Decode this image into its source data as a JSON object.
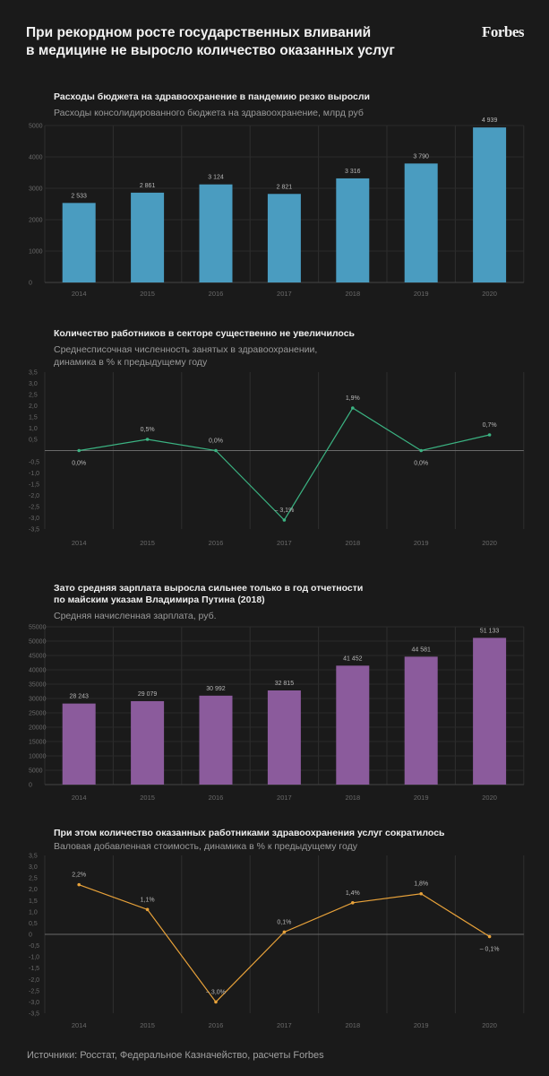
{
  "header": {
    "headline_line1": "При рекордном росте государственных вливаний",
    "headline_line2": "в медицине не выросло количество оказанных услуг",
    "brand": "Forbes"
  },
  "source": "Источники: Росстат, Федеральное Казначейство, расчеты Forbes",
  "charts": {
    "c1": {
      "title": "Расходы бюджета на здравоохранение в пандемию резко выросли",
      "subtitle": "Расходы консолидированного бюджета на здравоохранение, млрд руб"
    },
    "c2": {
      "title": "Количество работников в секторе существенно не увеличилось",
      "subtitle_line1": "Среднесписочная численность занятых в здравоохранении,",
      "subtitle_line2": "динамика в % к предыдущему году"
    },
    "c3": {
      "title_line1": "Зато средняя зарплата выросла сильнее только в год отчетности",
      "title_line2": "по майским указам Владимира Путина (2018)",
      "subtitle": "Средняя начисленная зарплата, руб."
    },
    "c4": {
      "title": "При этом количество оказанных работниками здравоохранения услуг сократилось",
      "subtitle": "Валовая добавленная стоимость, динамика в % к предыдущему году"
    }
  },
  "chart_data": [
    {
      "type": "bar",
      "title": "Расходы бюджета на здравоохранение в пандемию резко выросли",
      "subtitle": "Расходы консолидированного бюджета на здравоохранение, млрд руб",
      "categories": [
        "2014",
        "2015",
        "2016",
        "2017",
        "2018",
        "2019",
        "2020"
      ],
      "values": [
        2533,
        2861,
        3124,
        2821,
        3316,
        3790,
        4939
      ],
      "labels": [
        "2 533",
        "2 861",
        "3 124",
        "2 821",
        "3 316",
        "3 790",
        "4 939"
      ],
      "yticks": [
        0,
        1000,
        2000,
        3000,
        4000,
        5000
      ],
      "ylim": [
        0,
        5000
      ],
      "color": "#4a9cc0"
    },
    {
      "type": "line",
      "title": "Количество работников в секторе существенно не увеличилось",
      "subtitle": "Среднесписочная численность занятых в здравоохранении, динамика в % к предыдущему году",
      "categories": [
        "2014",
        "2015",
        "2016",
        "2017",
        "2018",
        "2019",
        "2020"
      ],
      "values": [
        0.0,
        0.5,
        0.0,
        -3.1,
        1.9,
        0.0,
        0.7
      ],
      "labels": [
        "0,0%",
        "0,5%",
        "0,0%",
        "– 3,1%",
        "1,9%",
        "0,0%",
        "0,7%"
      ],
      "label_pos": [
        "below",
        "above",
        "above",
        "above",
        "above",
        "below",
        "above"
      ],
      "yticks": [
        3.5,
        3.0,
        2.5,
        2.0,
        1.5,
        1.0,
        0.5,
        0,
        -0.5,
        -1.0,
        -1.5,
        -2.0,
        -2.5,
        -3.0,
        -3.5
      ],
      "ytick_labels": [
        "3,5",
        "3,0",
        "2,5",
        "2,0",
        "1,5",
        "1,0",
        "0,5",
        "",
        "-0,5",
        "-1,0",
        "-1,5",
        "-2,0",
        "-2,5",
        "-3,0",
        "-3,5"
      ],
      "ylim": [
        -3.5,
        3.5
      ],
      "color": "#3bb382"
    },
    {
      "type": "bar",
      "title": "Зато средняя зарплата выросла сильнее только в год отчетности по майским указам Владимира Путина (2018)",
      "subtitle": "Средняя начисленная зарплата, руб.",
      "categories": [
        "2014",
        "2015",
        "2016",
        "2017",
        "2018",
        "2019",
        "2020"
      ],
      "values": [
        28243,
        29079,
        30992,
        32815,
        41452,
        44581,
        51133
      ],
      "labels": [
        "28 243",
        "29 079",
        "30 992",
        "32 815",
        "41 452",
        "44 581",
        "51 133"
      ],
      "yticks": [
        0,
        5000,
        10000,
        15000,
        20000,
        25000,
        30000,
        35000,
        40000,
        45000,
        50000,
        55000
      ],
      "ylim": [
        0,
        55000
      ],
      "color": "#8b5b9c"
    },
    {
      "type": "line",
      "title": "При этом количество оказанных работниками здравоохранения услуг сократилось",
      "subtitle": "Валовая добавленная стоимость, динамика в % к предыдущему году",
      "categories": [
        "2014",
        "2015",
        "2016",
        "2017",
        "2018",
        "2019",
        "2020"
      ],
      "values": [
        2.2,
        1.1,
        -3.0,
        0.1,
        1.4,
        1.8,
        -0.1
      ],
      "labels": [
        "2,2%",
        "1,1%",
        "– 3,0%",
        "0,1%",
        "1,4%",
        "1,8%",
        "– 0,1%"
      ],
      "label_pos": [
        "above",
        "above",
        "above",
        "above",
        "above",
        "above",
        "below"
      ],
      "yticks": [
        3.5,
        3.0,
        2.5,
        2.0,
        1.5,
        1.0,
        0.5,
        0,
        -0.5,
        -1.0,
        -1.5,
        -2.0,
        -2.5,
        -3.0,
        -3.5
      ],
      "ytick_labels": [
        "3,5",
        "3,0",
        "2,5",
        "2,0",
        "1,5",
        "1,0",
        "0,5",
        "0",
        "-0,5",
        "-1,0",
        "-1,5",
        "-2,0",
        "-2,5",
        "-3,0",
        "-3,5"
      ],
      "ylim": [
        -3.5,
        3.5
      ],
      "color": "#e8a23a"
    }
  ]
}
